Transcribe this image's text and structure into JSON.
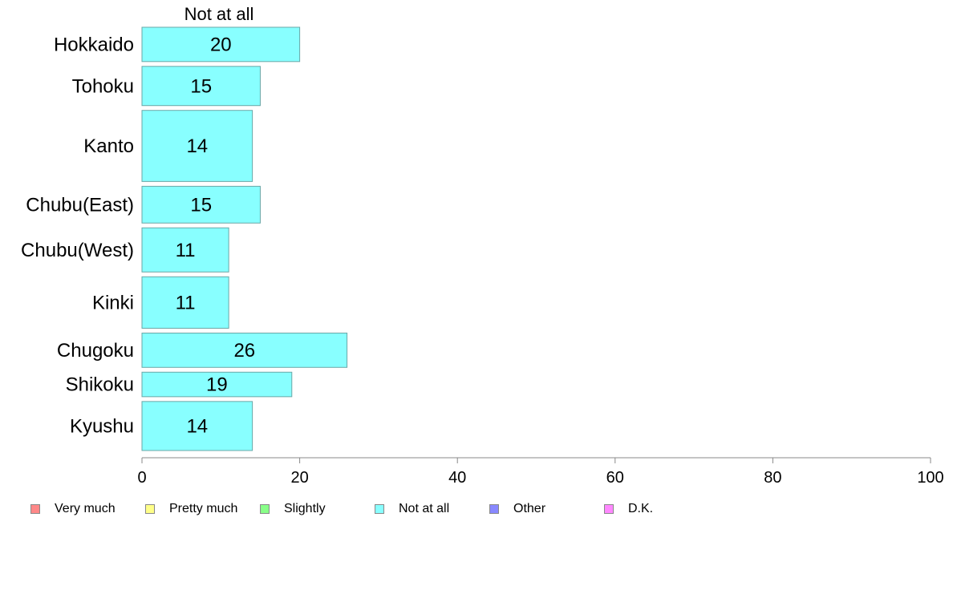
{
  "chart_data": {
    "type": "bar",
    "orientation": "horizontal",
    "series_title": "Not at all",
    "categories": [
      "Hokkaido",
      "Tohoku",
      "Kanto",
      "Chubu(East)",
      "Chubu(West)",
      "Kinki",
      "Chugoku",
      "Shikoku",
      "Kyushu"
    ],
    "category_weights": [
      0.7,
      0.8,
      1.45,
      0.75,
      0.9,
      1.05,
      0.7,
      0.5,
      1.0
    ],
    "values": [
      20,
      15,
      14,
      15,
      11,
      11,
      26,
      19,
      14
    ],
    "value_labels": [
      "20",
      "15",
      "14",
      "15",
      "11",
      "11",
      "26",
      "19",
      "14"
    ],
    "xlim": [
      0,
      100
    ],
    "x_ticks": [
      "0",
      "20",
      "40",
      "60",
      "80",
      "100"
    ],
    "bar_color": "#88ffff",
    "bar_edge_color": "#6aa7a7",
    "axis_color": "#888888",
    "legend_position": "bottom",
    "legend": [
      {
        "label": "Very much",
        "color": "#ff8888"
      },
      {
        "label": "Pretty much",
        "color": "#ffff88"
      },
      {
        "label": "Slightly",
        "color": "#88ff88"
      },
      {
        "label": "Not at all",
        "color": "#88ffff"
      },
      {
        "label": "Other",
        "color": "#8888ff"
      },
      {
        "label": "D.K.",
        "color": "#ff88ff"
      }
    ]
  }
}
